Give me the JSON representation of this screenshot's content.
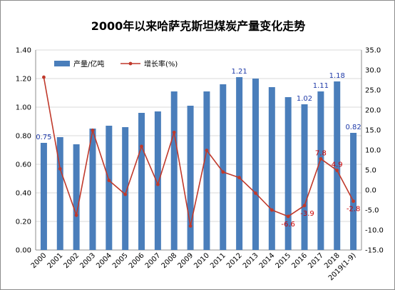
{
  "chart_data": {
    "type": "bar",
    "title": "2000年以来哈萨克斯坦煤炭产量变化走势",
    "categories": [
      "2000",
      "2001",
      "2002",
      "2003",
      "2004",
      "2005",
      "2006",
      "2007",
      "2008",
      "2009",
      "2010",
      "2011",
      "2012",
      "2013",
      "2014",
      "2015",
      "2016",
      "2017",
      "2018",
      "2019(1-9)"
    ],
    "series": [
      {
        "name": "产量/亿吨",
        "type": "bar",
        "axis": "left",
        "color": "#4a7ebb",
        "values": [
          0.75,
          0.79,
          0.74,
          0.85,
          0.87,
          0.86,
          0.96,
          0.97,
          1.11,
          1.01,
          1.11,
          1.16,
          1.21,
          1.2,
          1.14,
          1.07,
          1.02,
          1.11,
          1.18,
          0.82
        ]
      },
      {
        "name": "增长率(%)",
        "type": "line",
        "axis": "right",
        "color": "#c0392b",
        "values": [
          28.2,
          5.3,
          -6.3,
          14.9,
          2.4,
          -1.1,
          10.9,
          1.4,
          14.4,
          -9.0,
          9.9,
          4.5,
          3.1,
          -0.8,
          -5.0,
          -6.6,
          -3.9,
          7.8,
          4.9,
          -2.8
        ]
      }
    ],
    "y_left": {
      "min": 0,
      "max": 1.4,
      "step": 0.2,
      "ticks": [
        "0.00",
        "0.20",
        "0.40",
        "0.60",
        "0.80",
        "1.00",
        "1.20",
        "1.40"
      ]
    },
    "y_right": {
      "min": -15,
      "max": 35,
      "step": 5,
      "ticks": [
        "-15.0",
        "-10.0",
        "-5.0",
        "0.0",
        "5.0",
        "10.0",
        "15.0",
        "20.0",
        "25.0",
        "30.0",
        "35.0"
      ]
    },
    "bar_labels": [
      {
        "index": 0,
        "text": "0.75"
      },
      {
        "index": 12,
        "text": "1.21"
      },
      {
        "index": 16,
        "text": "1.02"
      },
      {
        "index": 17,
        "text": "1.11"
      },
      {
        "index": 18,
        "text": "1.18"
      },
      {
        "index": 19,
        "text": "0.82"
      }
    ],
    "line_labels": [
      {
        "index": 15,
        "text": "-6.6"
      },
      {
        "index": 16,
        "text": "-3.9"
      },
      {
        "index": 17,
        "text": "7.8"
      },
      {
        "index": 18,
        "text": "4.9"
      },
      {
        "index": 19,
        "text": "-2.8"
      }
    ],
    "grid": true,
    "legend_position": "top-left",
    "bar_label_color": "#1f3aa8",
    "line_label_color": "#cc0000"
  }
}
